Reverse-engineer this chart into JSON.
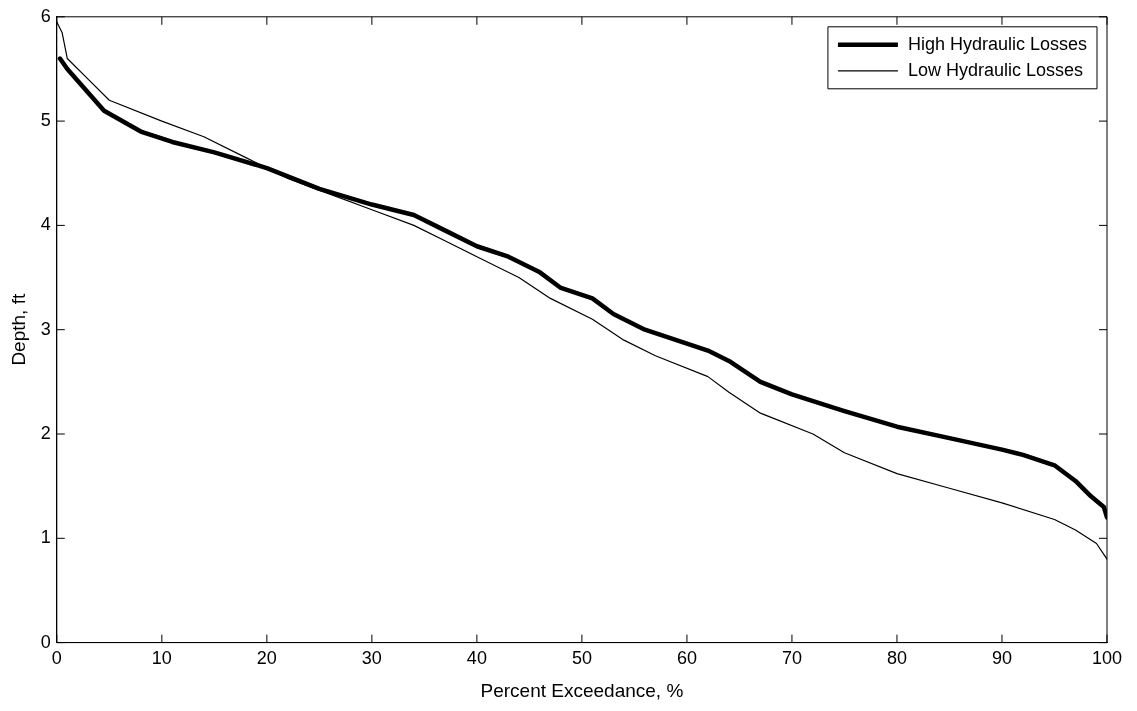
{
  "chart_data": {
    "type": "line",
    "xlabel": "Percent Exceedance, %",
    "ylabel": "Depth, ft",
    "xlim": [
      0,
      100
    ],
    "xticks": [
      0,
      10,
      20,
      30,
      40,
      50,
      60,
      70,
      80,
      90,
      100
    ],
    "ylim": [
      0,
      6
    ],
    "yticks": [
      0,
      1,
      2,
      3,
      4,
      5,
      6
    ],
    "grid": false,
    "legend": "top right",
    "marker": "none",
    "line_style": "solid",
    "series": [
      {
        "name": "High Hydraulic Losses",
        "color": "#000000",
        "x": [
          0.3,
          1,
          4.5,
          8,
          11,
          15,
          20,
          25,
          30,
          34,
          37,
          40,
          43,
          46,
          48,
          51,
          53,
          56,
          59,
          62,
          64,
          67,
          70,
          75,
          80,
          85,
          90,
          92,
          95,
          97,
          98.5,
          99.7,
          100
        ],
        "values": [
          5.6,
          5.5,
          5.1,
          4.9,
          4.8,
          4.7,
          4.55,
          4.35,
          4.2,
          4.1,
          3.95,
          3.8,
          3.7,
          3.55,
          3.4,
          3.3,
          3.15,
          3.0,
          2.9,
          2.8,
          2.7,
          2.5,
          2.38,
          2.22,
          2.07,
          1.96,
          1.85,
          1.8,
          1.7,
          1.55,
          1.4,
          1.3,
          1.2
        ]
      },
      {
        "name": "Low Hydraulic Losses",
        "color": "#000000",
        "x": [
          0,
          0.5,
          1,
          3,
          5,
          10,
          14,
          18,
          22,
          26,
          30,
          34,
          37,
          40,
          44,
          47,
          51,
          54,
          57,
          62,
          64,
          67,
          72,
          75,
          80,
          85,
          90,
          95,
          97,
          99,
          100
        ],
        "values": [
          5.95,
          5.85,
          5.6,
          5.4,
          5.2,
          5.0,
          4.85,
          4.65,
          4.45,
          4.3,
          4.15,
          4.0,
          3.85,
          3.7,
          3.5,
          3.3,
          3.1,
          2.9,
          2.75,
          2.55,
          2.4,
          2.2,
          2.0,
          1.82,
          1.62,
          1.48,
          1.34,
          1.18,
          1.08,
          0.95,
          0.8
        ]
      }
    ]
  }
}
